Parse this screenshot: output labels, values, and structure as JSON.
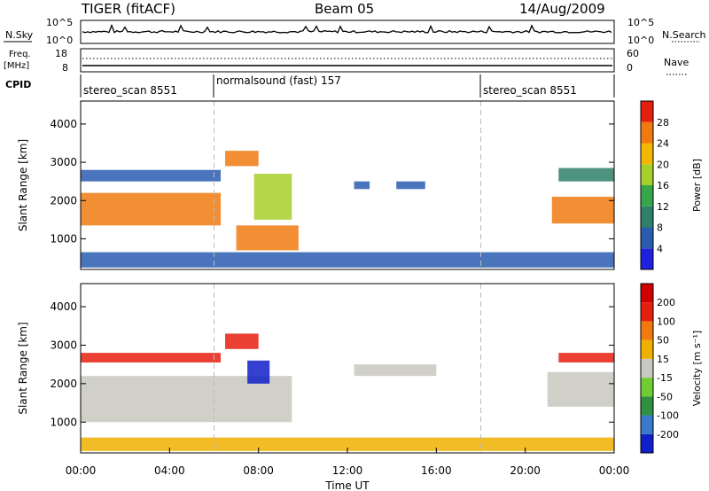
{
  "header": {
    "title": "TIGER (fitACF)",
    "beam": "Beam 05",
    "date": "14/Aug/2009"
  },
  "nsky": {
    "label": "N.Sky",
    "ticks": [
      "10^5",
      "10^0"
    ],
    "right_label": "N.Search"
  },
  "freq": {
    "label": "Freq.",
    "unit": "[MHz]",
    "ticks": [
      "18",
      "8"
    ],
    "right_ticks": [
      "60",
      "0"
    ],
    "right_label": "Nave"
  },
  "cpid": {
    "label": "CPID",
    "segments": [
      {
        "name": "stereo_scan 8551",
        "start_h": 0,
        "end_h": 6
      },
      {
        "name": "normalsound (fast) 157",
        "start_h": 6,
        "end_h": 18
      },
      {
        "name": "stereo_scan 8551",
        "start_h": 18,
        "end_h": 24
      }
    ]
  },
  "chart_data": [
    {
      "type": "heatmap",
      "name": "power",
      "ylabel": "Slant Range [km]",
      "ylim": [
        200,
        4600
      ],
      "yticks": [
        1000,
        2000,
        3000,
        4000
      ],
      "colorbar": {
        "label": "Power [dB]",
        "levels": [
          "4",
          "8",
          "12",
          "16",
          "20",
          "24",
          "28"
        ]
      },
      "colors": [
        "#1e22dc",
        "#2a5cb0",
        "#2f7f6a",
        "#36a64a",
        "#a6cf2a",
        "#f0b800",
        "#f07a10",
        "#e62010"
      ],
      "regions": [
        {
          "t": [
            0.0,
            6.3
          ],
          "r": [
            1350,
            2200
          ],
          "level": 6
        },
        {
          "t": [
            0.0,
            6.3
          ],
          "r": [
            2500,
            2800
          ],
          "level": 1
        },
        {
          "t": [
            6.5,
            8.0
          ],
          "r": [
            2900,
            3300
          ],
          "level": 6
        },
        {
          "t": [
            7.0,
            9.8
          ],
          "r": [
            700,
            1350
          ],
          "level": 6
        },
        {
          "t": [
            7.8,
            9.5
          ],
          "r": [
            1500,
            2700
          ],
          "level": 4
        },
        {
          "t": [
            12.3,
            13.0
          ],
          "r": [
            2300,
            2500
          ],
          "level": 1
        },
        {
          "t": [
            14.2,
            15.5
          ],
          "r": [
            2300,
            2500
          ],
          "level": 1
        },
        {
          "t": [
            21.2,
            24.0
          ],
          "r": [
            1400,
            2100
          ],
          "level": 6
        },
        {
          "t": [
            21.5,
            24.0
          ],
          "r": [
            2500,
            2850
          ],
          "level": 2
        },
        {
          "t": [
            0.0,
            24.0
          ],
          "r": [
            250,
            650
          ],
          "level": 1
        }
      ]
    },
    {
      "type": "heatmap",
      "name": "velocity",
      "ylabel": "Slant Range [km]",
      "ylim": [
        200,
        4600
      ],
      "yticks": [
        1000,
        2000,
        3000,
        4000
      ],
      "colorbar": {
        "label": "Velocity [m s⁻¹]",
        "levels": [
          "200",
          "100",
          "50",
          "15",
          "-15",
          "-50",
          "-100",
          "-200"
        ]
      },
      "colors": [
        "#1020c8",
        "#3a78c8",
        "#2f9040",
        "#70cc30",
        "#c8c8c0",
        "#f0b000",
        "#f07a10",
        "#e62010",
        "#d00000"
      ],
      "regions": [
        {
          "t": [
            0.0,
            6.3
          ],
          "r": [
            2550,
            2800
          ],
          "level": 7
        },
        {
          "t": [
            0.0,
            9.5
          ],
          "r": [
            1000,
            2200
          ],
          "level": 4
        },
        {
          "t": [
            6.5,
            8.0
          ],
          "r": [
            2900,
            3300
          ],
          "level": 7
        },
        {
          "t": [
            7.5,
            8.5
          ],
          "r": [
            2000,
            2600
          ],
          "level": 0
        },
        {
          "t": [
            12.3,
            16.0
          ],
          "r": [
            2200,
            2500
          ],
          "level": 4
        },
        {
          "t": [
            21.0,
            24.0
          ],
          "r": [
            1400,
            2300
          ],
          "level": 4
        },
        {
          "t": [
            21.5,
            24.0
          ],
          "r": [
            2550,
            2800
          ],
          "level": 7
        },
        {
          "t": [
            0.0,
            24.0
          ],
          "r": [
            250,
            600
          ],
          "level": 5
        }
      ]
    }
  ],
  "xaxis": {
    "label": "Time UT",
    "ticks": [
      "00:00",
      "04:00",
      "08:00",
      "12:00",
      "16:00",
      "20:00",
      "00:00"
    ],
    "range_h": [
      0,
      24
    ]
  }
}
